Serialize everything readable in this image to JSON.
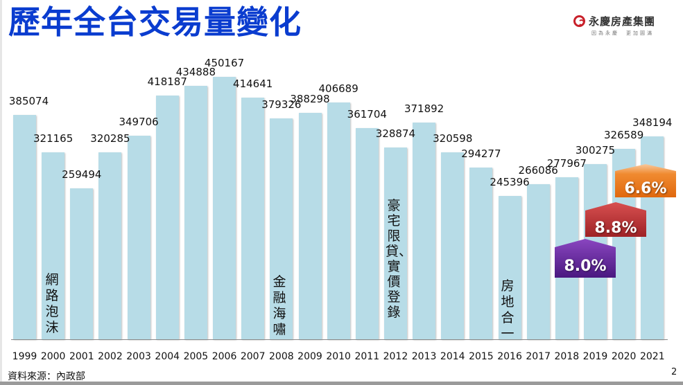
{
  "slide": {
    "title": "歷年全台交易量變化",
    "logo": {
      "name": "永慶房產集團",
      "slogan_left": "因為永慶",
      "slogan_right": "更加圓滿",
      "brand_color": "#c8202a"
    },
    "source": "資料來源：內政部",
    "page_number": "2"
  },
  "annotations": {
    "bubble": {
      "year": "2000",
      "text": "網路泡沫"
    },
    "crisis": {
      "year": "2008",
      "text": "金融海嘯"
    },
    "policy": {
      "year": "2012",
      "text": "豪宅限貸、 實價登錄"
    },
    "tax": {
      "year": "2016",
      "text": "房地合一"
    }
  },
  "badges": [
    {
      "label": "8.0%",
      "color": "#6a2aa0",
      "anchor_year": "2019"
    },
    {
      "label": "8.8%",
      "color": "#c0363a",
      "anchor_year": "2020"
    },
    {
      "label": "6.6%",
      "color": "#ee7a1c",
      "anchor_year": "2021"
    }
  ],
  "chart_data": {
    "type": "bar",
    "title": "歷年全台交易量變化",
    "xlabel": "",
    "ylabel": "",
    "categories": [
      "1999",
      "2000",
      "2001",
      "2002",
      "2003",
      "2004",
      "2005",
      "2006",
      "2007",
      "2008",
      "2009",
      "2010",
      "2011",
      "2012",
      "2013",
      "2014",
      "2015",
      "2016",
      "2017",
      "2018",
      "2019",
      "2020",
      "2021"
    ],
    "values": [
      385074,
      321165,
      259494,
      320285,
      349706,
      418187,
      434888,
      450167,
      414641,
      379326,
      388298,
      406689,
      361704,
      328874,
      371892,
      320598,
      294277,
      245396,
      266086,
      277967,
      300275,
      326589,
      348194
    ],
    "bar_color": "#b7dce7",
    "ylim": [
      0,
      450167
    ],
    "grid": false,
    "legend": "none",
    "annotations": [
      {
        "x": "2000",
        "text": "網路泡沫"
      },
      {
        "x": "2008",
        "text": "金融海嘯"
      },
      {
        "x": "2012",
        "text": "豪宅限貸、實價登錄"
      },
      {
        "x": "2016",
        "text": "房地合一"
      },
      {
        "x": "2019",
        "text": "8.0%"
      },
      {
        "x": "2020",
        "text": "8.8%"
      },
      {
        "x": "2021",
        "text": "6.6%"
      }
    ]
  }
}
